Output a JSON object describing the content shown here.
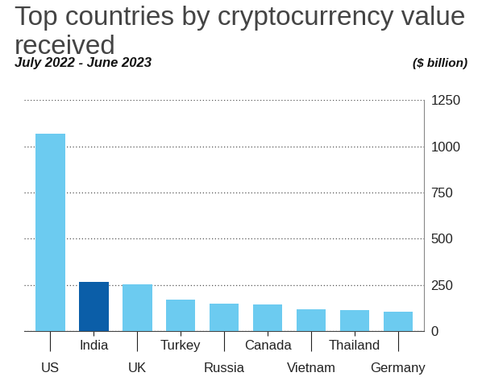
{
  "chart_data": {
    "type": "bar",
    "title": "Top countries by cryptocurrency value received",
    "subtitle": "July 2022 - June 2023",
    "y_label": "($ billion)",
    "categories": [
      "US",
      "India",
      "UK",
      "Turkey",
      "Russia",
      "Canada",
      "Vietnam",
      "Thailand",
      "Germany"
    ],
    "values": [
      1070,
      268,
      252,
      171,
      150,
      146,
      120,
      114,
      103
    ],
    "colors": [
      "#6ccbf0",
      "#0b5ea8",
      "#6ccbf0",
      "#6ccbf0",
      "#6ccbf0",
      "#6ccbf0",
      "#6ccbf0",
      "#6ccbf0",
      "#6ccbf0"
    ],
    "ylim": [
      0,
      1250
    ],
    "yticks": [
      0,
      250,
      500,
      750,
      1000,
      1250
    ],
    "grid": true
  }
}
